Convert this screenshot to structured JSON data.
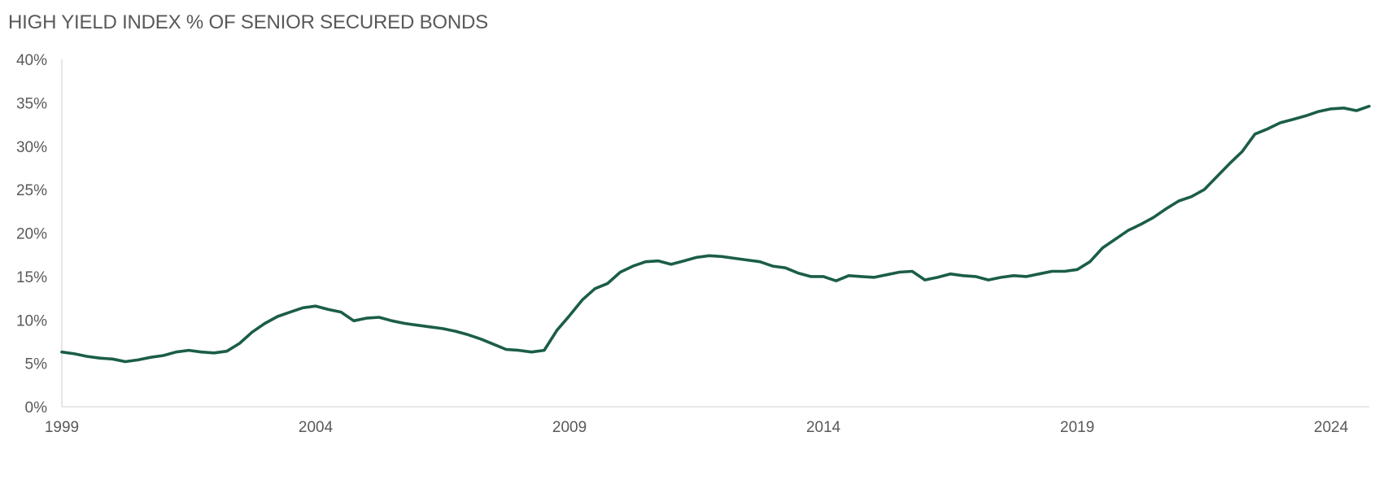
{
  "chart_data": {
    "type": "line",
    "title": "HIGH YIELD INDEX % OF SENIOR SECURED BONDS",
    "xlabel": "",
    "ylabel": "",
    "xlim": [
      1999,
      2024.75
    ],
    "ylim": [
      0,
      40
    ],
    "x_ticks": [
      1999,
      2004,
      2009,
      2014,
      2019,
      2024
    ],
    "x_tick_labels": [
      "1999",
      "2004",
      "2009",
      "2014",
      "2019",
      "2024"
    ],
    "y_ticks": [
      0,
      5,
      10,
      15,
      20,
      25,
      30,
      35,
      40
    ],
    "y_tick_labels": [
      "0%",
      "5%",
      "10%",
      "15%",
      "20%",
      "25%",
      "30%",
      "35%",
      "40%"
    ],
    "grid": false,
    "legend": "none",
    "colors": {
      "line": "#1b5e45",
      "axis": "#d9d9d9",
      "text": "#595959"
    },
    "series": [
      {
        "x": [
          1999.0,
          1999.25,
          1999.5,
          1999.75,
          2000.0,
          2000.25,
          2000.5,
          2000.75,
          2001.0,
          2001.25,
          2001.5,
          2001.75,
          2002.0,
          2002.25,
          2002.5,
          2002.75,
          2003.0,
          2003.25,
          2003.5,
          2003.75,
          2004.0,
          2004.25,
          2004.5,
          2004.75,
          2005.0,
          2005.25,
          2005.5,
          2005.75,
          2006.0,
          2006.25,
          2006.5,
          2006.75,
          2007.0,
          2007.25,
          2007.5,
          2007.75,
          2008.0,
          2008.25,
          2008.5,
          2008.75,
          2009.0,
          2009.25,
          2009.5,
          2009.75,
          2010.0,
          2010.25,
          2010.5,
          2010.75,
          2011.0,
          2011.25,
          2011.5,
          2011.75,
          2012.0,
          2012.25,
          2012.5,
          2012.75,
          2013.0,
          2013.25,
          2013.5,
          2013.75,
          2014.0,
          2014.25,
          2014.5,
          2014.75,
          2015.0,
          2015.25,
          2015.5,
          2015.75,
          2016.0,
          2016.25,
          2016.5,
          2016.75,
          2017.0,
          2017.25,
          2017.5,
          2017.75,
          2018.0,
          2018.25,
          2018.5,
          2018.75,
          2019.0,
          2019.25,
          2019.5,
          2019.75,
          2020.0,
          2020.25,
          2020.5,
          2020.75,
          2021.0,
          2021.25,
          2021.5,
          2021.75,
          2022.0,
          2022.25,
          2022.5,
          2022.75,
          2023.0,
          2023.25,
          2023.5,
          2023.75,
          2024.0,
          2024.25,
          2024.5,
          2024.75
        ],
        "values": [
          6.3,
          6.1,
          5.8,
          5.6,
          5.5,
          5.2,
          5.4,
          5.7,
          5.9,
          6.3,
          6.5,
          6.3,
          6.2,
          6.4,
          7.3,
          8.6,
          9.6,
          10.4,
          10.9,
          11.4,
          11.6,
          11.2,
          10.9,
          9.9,
          10.2,
          10.3,
          9.9,
          9.6,
          9.4,
          9.2,
          9.0,
          8.7,
          8.3,
          7.8,
          7.2,
          6.6,
          6.5,
          6.3,
          6.5,
          8.8,
          10.5,
          12.3,
          13.6,
          14.2,
          15.5,
          16.2,
          16.7,
          16.8,
          16.4,
          16.8,
          17.2,
          17.4,
          17.3,
          17.1,
          16.9,
          16.7,
          16.2,
          16.0,
          15.4,
          15.0,
          15.0,
          14.5,
          15.1,
          15.0,
          14.9,
          15.2,
          15.5,
          15.6,
          14.6,
          14.9,
          15.3,
          15.1,
          15.0,
          14.6,
          14.9,
          15.1,
          15.0,
          15.3,
          15.6,
          15.6,
          15.8,
          16.7,
          18.3,
          19.3,
          20.3,
          21.0,
          21.8,
          22.8,
          23.7,
          24.2,
          25.0,
          26.5,
          28.0,
          29.4,
          31.4,
          32.0,
          32.7,
          33.1,
          33.5,
          34.0,
          34.3,
          34.4,
          34.1,
          34.6
        ]
      }
    ]
  }
}
